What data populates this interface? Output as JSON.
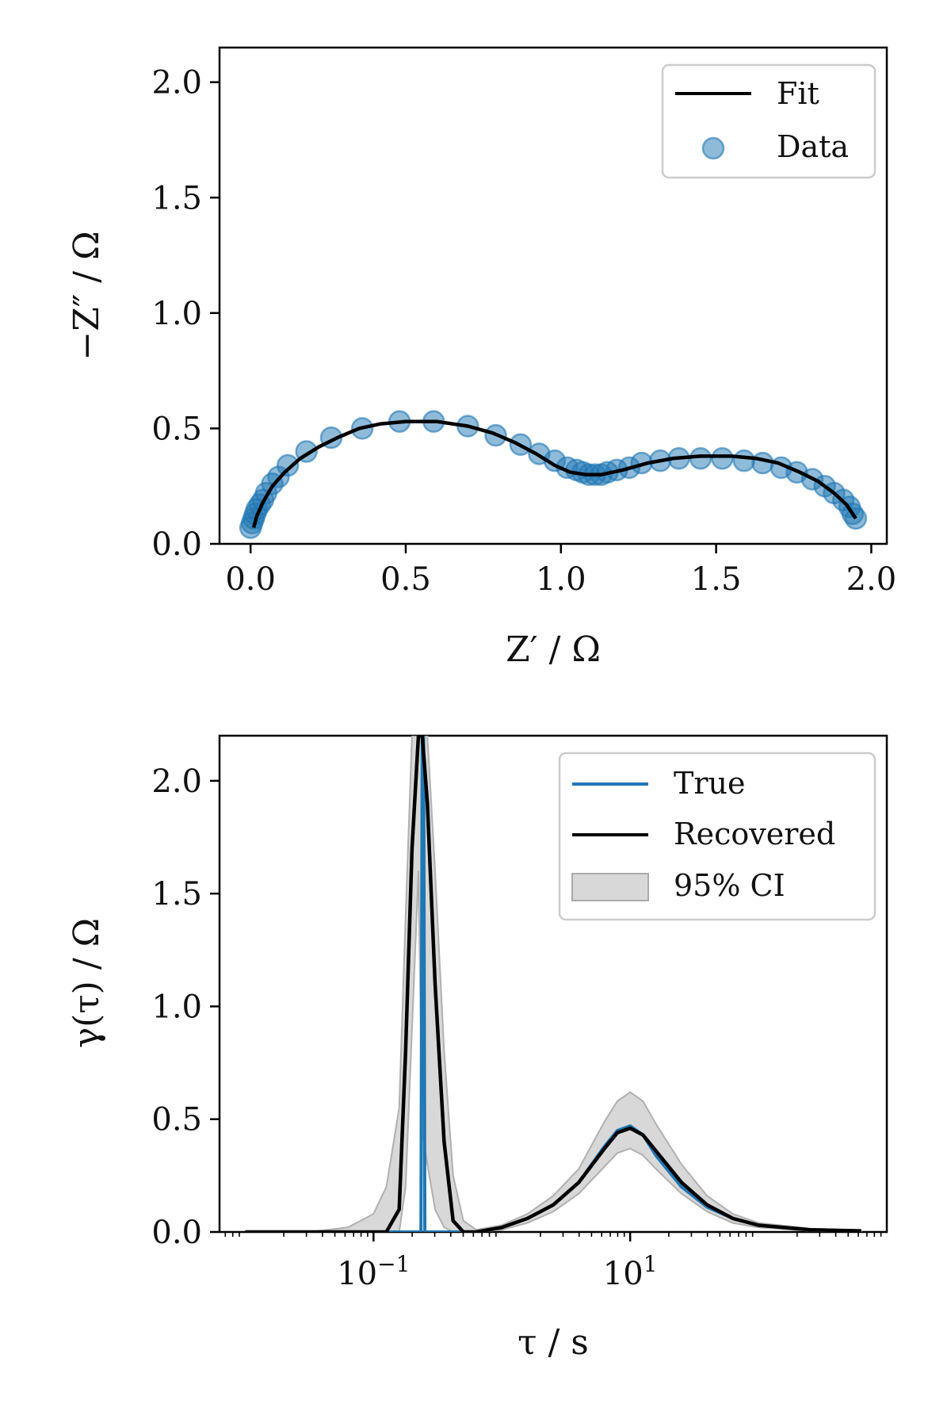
{
  "chart_data": [
    {
      "type": "scatter",
      "xlabel": "Z′ / Ω",
      "ylabel": "−Z″ / Ω",
      "xlim": [
        -0.1,
        2.05
      ],
      "ylim": [
        0.0,
        2.15
      ],
      "xticks": [
        0.0,
        0.5,
        1.0,
        1.5,
        2.0
      ],
      "yticks": [
        0.0,
        0.5,
        1.0,
        1.5,
        2.0
      ],
      "xtick_labels": [
        "0.0",
        "0.5",
        "1.0",
        "1.5",
        "2.0"
      ],
      "ytick_labels": [
        "0.0",
        "0.5",
        "1.0",
        "1.5",
        "2.0"
      ],
      "legend_position": "top-right",
      "series": [
        {
          "name": "Fit",
          "kind": "line",
          "color": "#000000",
          "points": [
            [
              0.01,
              0.07
            ],
            [
              0.02,
              0.12
            ],
            [
              0.04,
              0.18
            ],
            [
              0.07,
              0.25
            ],
            [
              0.11,
              0.31
            ],
            [
              0.16,
              0.37
            ],
            [
              0.22,
              0.42
            ],
            [
              0.28,
              0.46
            ],
            [
              0.35,
              0.5
            ],
            [
              0.42,
              0.52
            ],
            [
              0.5,
              0.53
            ],
            [
              0.6,
              0.53
            ],
            [
              0.7,
              0.51
            ],
            [
              0.78,
              0.48
            ],
            [
              0.85,
              0.44
            ],
            [
              0.92,
              0.39
            ],
            [
              0.98,
              0.34
            ],
            [
              1.03,
              0.31
            ],
            [
              1.08,
              0.3
            ],
            [
              1.13,
              0.3
            ],
            [
              1.2,
              0.32
            ],
            [
              1.28,
              0.35
            ],
            [
              1.36,
              0.37
            ],
            [
              1.45,
              0.38
            ],
            [
              1.55,
              0.38
            ],
            [
              1.63,
              0.37
            ],
            [
              1.7,
              0.35
            ],
            [
              1.77,
              0.31
            ],
            [
              1.83,
              0.27
            ],
            [
              1.88,
              0.22
            ],
            [
              1.92,
              0.17
            ],
            [
              1.95,
              0.11
            ]
          ]
        },
        {
          "name": "Data",
          "kind": "scatter",
          "color": "#1f77b4",
          "points": [
            [
              0.0,
              0.07
            ],
            [
              0.005,
              0.09
            ],
            [
              0.01,
              0.11
            ],
            [
              0.015,
              0.13
            ],
            [
              0.02,
              0.15
            ],
            [
              0.03,
              0.17
            ],
            [
              0.04,
              0.19
            ],
            [
              0.05,
              0.22
            ],
            [
              0.07,
              0.26
            ],
            [
              0.09,
              0.29
            ],
            [
              0.12,
              0.34
            ],
            [
              0.18,
              0.4
            ],
            [
              0.26,
              0.46
            ],
            [
              0.36,
              0.5
            ],
            [
              0.48,
              0.53
            ],
            [
              0.59,
              0.53
            ],
            [
              0.7,
              0.51
            ],
            [
              0.79,
              0.47
            ],
            [
              0.87,
              0.43
            ],
            [
              0.93,
              0.39
            ],
            [
              0.98,
              0.36
            ],
            [
              1.02,
              0.33
            ],
            [
              1.05,
              0.32
            ],
            [
              1.07,
              0.31
            ],
            [
              1.09,
              0.3
            ],
            [
              1.11,
              0.3
            ],
            [
              1.13,
              0.3
            ],
            [
              1.15,
              0.31
            ],
            [
              1.18,
              0.32
            ],
            [
              1.22,
              0.33
            ],
            [
              1.26,
              0.35
            ],
            [
              1.32,
              0.36
            ],
            [
              1.38,
              0.37
            ],
            [
              1.45,
              0.37
            ],
            [
              1.52,
              0.37
            ],
            [
              1.59,
              0.36
            ],
            [
              1.65,
              0.35
            ],
            [
              1.71,
              0.33
            ],
            [
              1.76,
              0.31
            ],
            [
              1.81,
              0.28
            ],
            [
              1.85,
              0.25
            ],
            [
              1.88,
              0.22
            ],
            [
              1.91,
              0.19
            ],
            [
              1.93,
              0.16
            ],
            [
              1.94,
              0.13
            ],
            [
              1.95,
              0.11
            ]
          ]
        }
      ]
    },
    {
      "type": "line",
      "xlabel": "τ / s",
      "ylabel": "γ(τ) / Ω",
      "xscale": "log",
      "xlim_log10": [
        -2.2,
        3.0
      ],
      "ylim": [
        0.0,
        2.2
      ],
      "xticks_log10": [
        -1,
        1
      ],
      "xtick_labels": [
        {
          "base": "10",
          "exponent": "−1"
        },
        {
          "base": "10",
          "exponent": "1"
        }
      ],
      "yticks": [
        0.0,
        0.5,
        1.0,
        1.5,
        2.0
      ],
      "ytick_labels": [
        "0.0",
        "0.5",
        "1.0",
        "1.5",
        "2.0"
      ],
      "legend_position": "top-right",
      "series": [
        {
          "name": "True",
          "kind": "line",
          "color": "#1f77b4",
          "log10_tau": [
            -2.0,
            -1.0,
            -0.8,
            -0.63,
            -0.62,
            -0.61,
            -0.6,
            -0.4,
            -0.2,
            0.0,
            0.2,
            0.4,
            0.6,
            0.8,
            0.9,
            1.0,
            1.1,
            1.2,
            1.4,
            1.6,
            1.8,
            2.0,
            2.4,
            2.8
          ],
          "gamma": [
            0.0,
            0.0,
            0.0,
            0.0,
            2.2,
            2.2,
            0.0,
            0.0,
            0.0,
            0.02,
            0.06,
            0.12,
            0.22,
            0.38,
            0.45,
            0.47,
            0.43,
            0.34,
            0.2,
            0.11,
            0.06,
            0.03,
            0.01,
            0.005
          ]
        },
        {
          "name": "Recovered",
          "kind": "line",
          "color": "#000000",
          "log10_tau": [
            -2.0,
            -1.5,
            -1.2,
            -1.0,
            -0.9,
            -0.8,
            -0.75,
            -0.7,
            -0.65,
            -0.62,
            -0.58,
            -0.52,
            -0.45,
            -0.38,
            -0.3,
            -0.2,
            0.0,
            0.2,
            0.4,
            0.6,
            0.8,
            0.9,
            1.0,
            1.1,
            1.2,
            1.4,
            1.6,
            1.8,
            2.0,
            2.4,
            2.8
          ],
          "gamma": [
            0.0,
            0.0,
            0.0,
            0.0,
            0.0,
            0.1,
            0.8,
            1.7,
            2.2,
            2.2,
            1.9,
            1.1,
            0.4,
            0.05,
            0.0,
            0.0,
            0.02,
            0.06,
            0.12,
            0.22,
            0.37,
            0.44,
            0.46,
            0.43,
            0.36,
            0.22,
            0.12,
            0.06,
            0.03,
            0.01,
            0.005
          ]
        },
        {
          "name": "95% CI",
          "kind": "band",
          "color": "#c8c8c8",
          "log10_tau": [
            -2.0,
            -1.5,
            -1.2,
            -1.0,
            -0.9,
            -0.8,
            -0.75,
            -0.7,
            -0.65,
            -0.62,
            -0.58,
            -0.52,
            -0.45,
            -0.38,
            -0.3,
            -0.2,
            0.0,
            0.2,
            0.4,
            0.6,
            0.8,
            0.9,
            1.0,
            1.1,
            1.2,
            1.4,
            1.6,
            1.8,
            2.0,
            2.4,
            2.8
          ],
          "lower": [
            0.0,
            0.0,
            0.0,
            0.0,
            0.0,
            0.0,
            0.2,
            0.9,
            1.6,
            0.45,
            0.3,
            0.1,
            0.02,
            0.0,
            0.0,
            0.0,
            0.01,
            0.04,
            0.09,
            0.17,
            0.29,
            0.35,
            0.37,
            0.34,
            0.28,
            0.17,
            0.09,
            0.04,
            0.02,
            0.005,
            0.0
          ],
          "upper": [
            0.0,
            0.0,
            0.02,
            0.08,
            0.2,
            0.55,
            1.4,
            2.2,
            2.2,
            2.2,
            2.2,
            1.6,
            0.8,
            0.25,
            0.05,
            0.01,
            0.03,
            0.08,
            0.16,
            0.28,
            0.49,
            0.58,
            0.62,
            0.58,
            0.48,
            0.3,
            0.16,
            0.08,
            0.04,
            0.015,
            0.008
          ]
        }
      ]
    }
  ]
}
